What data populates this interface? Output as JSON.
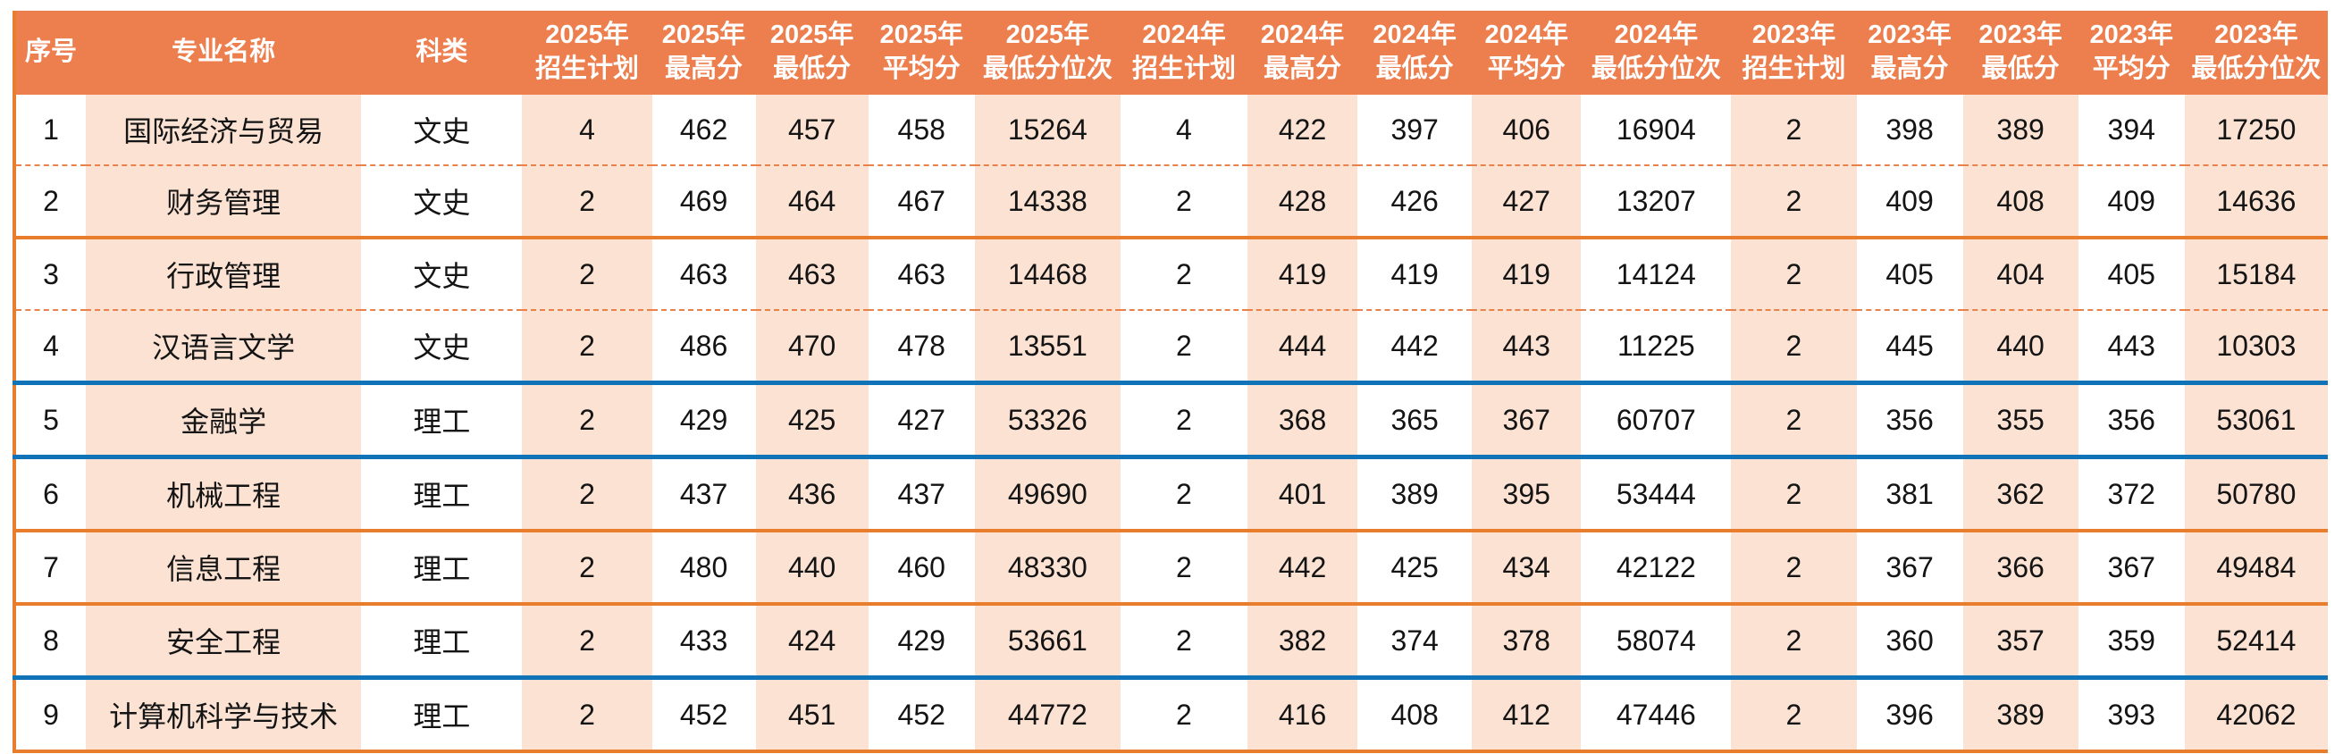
{
  "colors": {
    "header_bg": "#ED7E4E",
    "header_text": "#FFFFFF",
    "column_stripe": "#FBE2D3",
    "cell_text": "#141414",
    "divider_dashed": "#E8814A",
    "divider_orange": "#E87D2D",
    "divider_blue": "#1173B7"
  },
  "table": {
    "columns": [
      {
        "id": "sn",
        "line1": "序号",
        "line2": ""
      },
      {
        "id": "major",
        "line1": "专业名称",
        "line2": ""
      },
      {
        "id": "category",
        "line1": "科类",
        "line2": ""
      },
      {
        "id": "plan-2025",
        "line1": "2025年",
        "line2": "招生计划"
      },
      {
        "id": "max-2025",
        "line1": "2025年",
        "line2": "最高分"
      },
      {
        "id": "min-2025",
        "line1": "2025年",
        "line2": "最低分"
      },
      {
        "id": "avg-2025",
        "line1": "2025年",
        "line2": "平均分"
      },
      {
        "id": "minrank-2025",
        "line1": "2025年",
        "line2": "最低分位次"
      },
      {
        "id": "plan-2024",
        "line1": "2024年",
        "line2": "招生计划"
      },
      {
        "id": "max-2024",
        "line1": "2024年",
        "line2": "最高分"
      },
      {
        "id": "min-2024",
        "line1": "2024年",
        "line2": "最低分"
      },
      {
        "id": "avg-2024",
        "line1": "2024年",
        "line2": "平均分"
      },
      {
        "id": "minrank-2024",
        "line1": "2024年",
        "line2": "最低分位次"
      },
      {
        "id": "plan-2023",
        "line1": "2023年",
        "line2": "招生计划"
      },
      {
        "id": "max-2023",
        "line1": "2023年",
        "line2": "最高分"
      },
      {
        "id": "min-2023",
        "line1": "2023年",
        "line2": "最低分"
      },
      {
        "id": "avg-2023",
        "line1": "2023年",
        "line2": "平均分"
      },
      {
        "id": "minrank-2023",
        "line1": "2023年",
        "line2": "最低分位次"
      }
    ],
    "rows": [
      {
        "divider": "dashed",
        "cells": [
          "1",
          "国际经济与贸易",
          "文史",
          "4",
          "462",
          "457",
          "458",
          "15264",
          "4",
          "422",
          "397",
          "406",
          "16904",
          "2",
          "398",
          "389",
          "394",
          "17250"
        ]
      },
      {
        "divider": "orange",
        "cells": [
          "2",
          "财务管理",
          "文史",
          "2",
          "469",
          "464",
          "467",
          "14338",
          "2",
          "428",
          "426",
          "427",
          "13207",
          "2",
          "409",
          "408",
          "409",
          "14636"
        ]
      },
      {
        "divider": "dashed",
        "cells": [
          "3",
          "行政管理",
          "文史",
          "2",
          "463",
          "463",
          "463",
          "14468",
          "2",
          "419",
          "419",
          "419",
          "14124",
          "2",
          "405",
          "404",
          "405",
          "15184"
        ]
      },
      {
        "divider": "blue",
        "cells": [
          "4",
          "汉语言文学",
          "文史",
          "2",
          "486",
          "470",
          "478",
          "13551",
          "2",
          "444",
          "442",
          "443",
          "11225",
          "2",
          "445",
          "440",
          "443",
          "10303"
        ]
      },
      {
        "divider": "blue",
        "cells": [
          "5",
          "金融学",
          "理工",
          "2",
          "429",
          "425",
          "427",
          "53326",
          "2",
          "368",
          "365",
          "367",
          "60707",
          "2",
          "356",
          "355",
          "356",
          "53061"
        ]
      },
      {
        "divider": "orange",
        "cells": [
          "6",
          "机械工程",
          "理工",
          "2",
          "437",
          "436",
          "437",
          "49690",
          "2",
          "401",
          "389",
          "395",
          "53444",
          "2",
          "381",
          "362",
          "372",
          "50780"
        ]
      },
      {
        "divider": "orange",
        "cells": [
          "7",
          "信息工程",
          "理工",
          "2",
          "480",
          "440",
          "460",
          "48330",
          "2",
          "442",
          "425",
          "434",
          "42122",
          "2",
          "367",
          "366",
          "367",
          "49484"
        ]
      },
      {
        "divider": "blue",
        "cells": [
          "8",
          "安全工程",
          "理工",
          "2",
          "433",
          "424",
          "429",
          "53661",
          "2",
          "382",
          "374",
          "378",
          "58074",
          "2",
          "360",
          "357",
          "359",
          "52414"
        ]
      },
      {
        "divider": "orange",
        "cells": [
          "9",
          "计算机科学与技术",
          "理工",
          "2",
          "452",
          "451",
          "452",
          "44772",
          "2",
          "416",
          "408",
          "412",
          "47446",
          "2",
          "396",
          "389",
          "393",
          "42062"
        ]
      }
    ]
  }
}
